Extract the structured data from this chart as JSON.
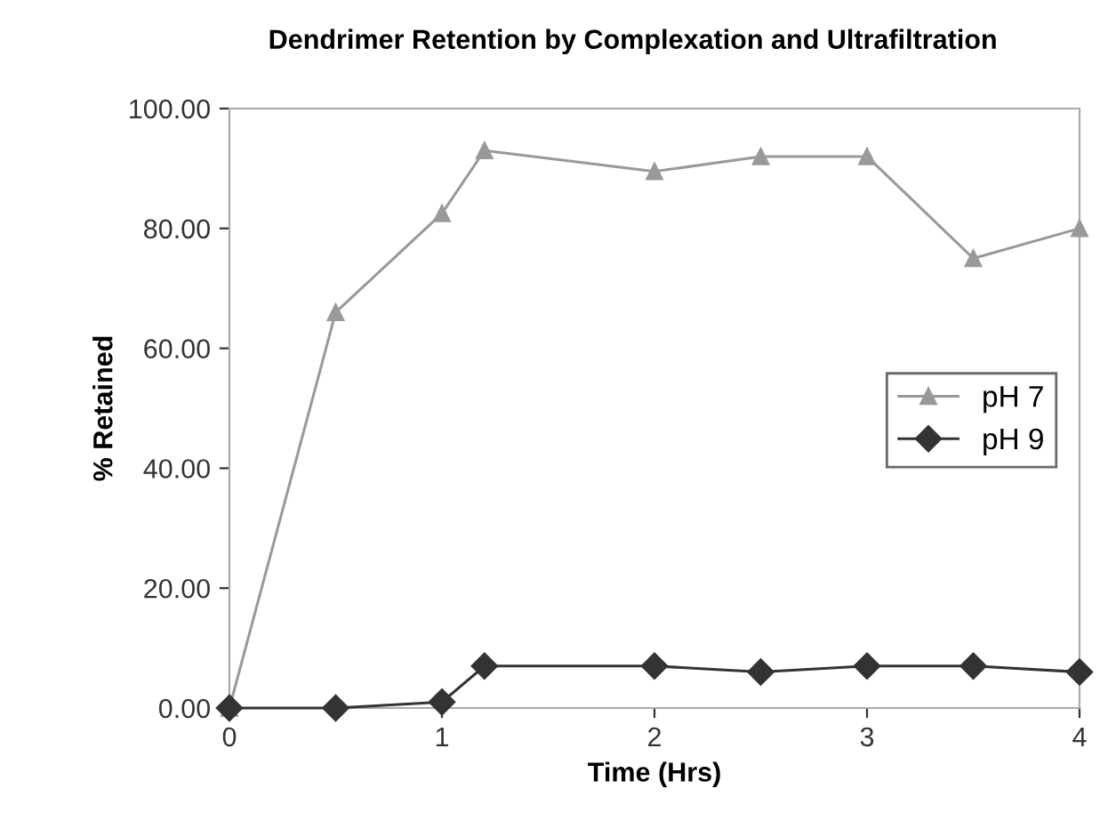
{
  "chart_data": {
    "type": "line",
    "title": "Dendrimer Retention by Complexation and Ultrafiltration",
    "xlabel": "Time (Hrs)",
    "ylabel": "% Retained",
    "x": [
      0,
      0.5,
      1,
      1.2,
      2,
      2.5,
      3,
      3.5,
      4
    ],
    "series": [
      {
        "name": "pH 7",
        "color": "#999999",
        "marker": "triangle",
        "values": [
          0,
          66,
          82.5,
          93,
          89.5,
          92,
          92,
          75,
          80
        ]
      },
      {
        "name": "pH 9",
        "color": "#333333",
        "marker": "diamond",
        "values": [
          0,
          0,
          1,
          7,
          7,
          6,
          7,
          7,
          6
        ]
      }
    ],
    "xlim": [
      0,
      4
    ],
    "xticks": [
      0,
      1,
      2,
      3,
      4
    ],
    "ylim": [
      0,
      100
    ],
    "yticks": [
      {
        "value": 0,
        "label": "0.00"
      },
      {
        "value": 20,
        "label": "20.00"
      },
      {
        "value": 40,
        "label": "40.00"
      },
      {
        "value": 60,
        "label": "60.00"
      },
      {
        "value": 80,
        "label": "80.00"
      },
      {
        "value": 100,
        "label": "100.00"
      }
    ],
    "grid": false,
    "legend": "right",
    "line_style": "solid"
  }
}
